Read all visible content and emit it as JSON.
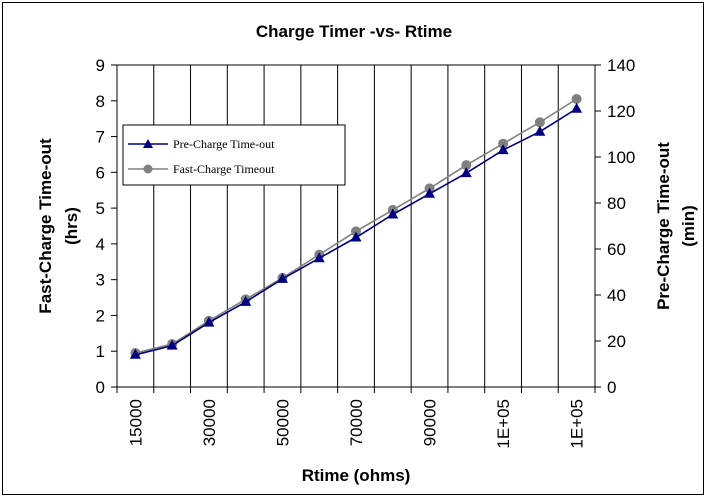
{
  "chart_data": {
    "type": "line",
    "title": "Charge Timer -vs- Rtime",
    "xlabel": "Rtime (ohms)",
    "ylabel": "Fast-Charge Time-out",
    "ylabel_unit": "(hrs)",
    "y2label": "Pre-Charge Time-out",
    "y2label_unit": "(min)",
    "x": [
      15000,
      22500,
      30000,
      40000,
      50000,
      60000,
      70000,
      80000,
      90000,
      100000,
      110000,
      120000,
      130000
    ],
    "x_tick_labels": [
      "15000",
      "",
      "30000",
      "",
      "50000",
      "",
      "70000",
      "",
      "90000",
      "",
      "1E+05",
      "",
      "1E+05"
    ],
    "ylim": [
      0,
      9
    ],
    "y_ticks": [
      "0",
      "1",
      "2",
      "3",
      "4",
      "5",
      "6",
      "7",
      "8",
      "9"
    ],
    "y2lim": [
      0,
      140
    ],
    "y2_ticks": [
      "0",
      "20",
      "40",
      "60",
      "80",
      "100",
      "120",
      "140"
    ],
    "series": [
      {
        "name": "Pre-Charge Time-out",
        "axis": "right",
        "color": "#000080",
        "marker": "triangle",
        "values": [
          14,
          18,
          28,
          37,
          47,
          56,
          65,
          75,
          84,
          93,
          103,
          111,
          121
        ]
      },
      {
        "name": "Fast-Charge Timeout",
        "axis": "left",
        "color": "#808080",
        "marker": "circle",
        "values": [
          0.95,
          1.2,
          1.85,
          2.45,
          3.05,
          3.7,
          4.35,
          4.95,
          5.55,
          6.2,
          6.8,
          7.4,
          8.05
        ]
      }
    ],
    "legend_position": "left-upper",
    "grid": "vertical"
  }
}
